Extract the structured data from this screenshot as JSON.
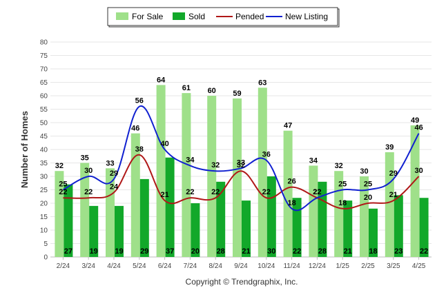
{
  "chart_data": {
    "type": "bar",
    "categories": [
      "2/24",
      "3/24",
      "4/24",
      "5/24",
      "6/24",
      "7/24",
      "8/24",
      "9/24",
      "10/24",
      "11/24",
      "12/24",
      "1/25",
      "2/25",
      "3/25",
      "4/25"
    ],
    "series": [
      {
        "name": "For Sale",
        "kind": "bar",
        "color": "#9fe08a",
        "values": [
          32,
          35,
          33,
          46,
          64,
          61,
          60,
          59,
          63,
          47,
          34,
          32,
          30,
          39,
          49
        ]
      },
      {
        "name": "Sold",
        "kind": "bar",
        "color": "#12a82a",
        "values": [
          27,
          19,
          19,
          29,
          37,
          20,
          28,
          21,
          30,
          22,
          28,
          21,
          18,
          23,
          22
        ]
      },
      {
        "name": "Pended",
        "kind": "line",
        "color": "#b01818",
        "values": [
          22,
          22,
          24,
          38,
          21,
          22,
          22,
          32,
          22,
          26,
          22,
          18,
          20,
          21,
          30
        ]
      },
      {
        "name": "New Listing",
        "kind": "line",
        "color": "#1020d0",
        "values": [
          25,
          30,
          29,
          56,
          40,
          34,
          32,
          33,
          36,
          18,
          22,
          25,
          25,
          29,
          46
        ]
      }
    ],
    "title": "",
    "xlabel": "",
    "ylabel": "Number of Homes",
    "ylim": [
      0,
      80
    ],
    "yticks": [
      0,
      5,
      10,
      15,
      20,
      25,
      30,
      35,
      40,
      45,
      50,
      55,
      60,
      65,
      70,
      75,
      80
    ],
    "grid": true,
    "legend_position": "top-center"
  },
  "footer": {
    "copyright": "Copyright © Trendgraphix, Inc."
  }
}
